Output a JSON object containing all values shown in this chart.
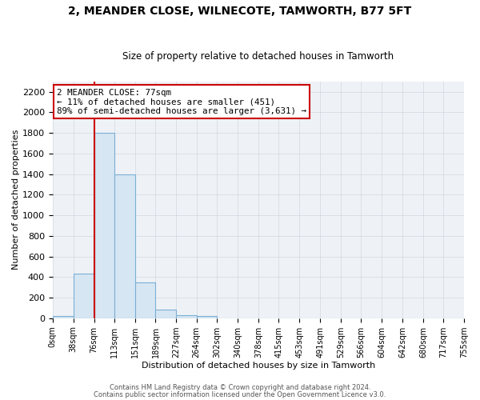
{
  "title": "2, MEANDER CLOSE, WILNECOTE, TAMWORTH, B77 5FT",
  "subtitle": "Size of property relative to detached houses in Tamworth",
  "xlabel": "Distribution of detached houses by size in Tamworth",
  "ylabel": "Number of detached properties",
  "bin_edges": [
    0,
    38,
    76,
    113,
    151,
    189,
    227,
    264,
    302,
    340,
    378,
    415,
    453,
    491,
    529,
    566,
    604,
    642,
    680,
    717,
    755
  ],
  "bin_counts": [
    20,
    430,
    1800,
    1400,
    350,
    80,
    30,
    20,
    0,
    0,
    0,
    0,
    0,
    0,
    0,
    0,
    0,
    0,
    0,
    0
  ],
  "bar_color": "#d6e6f3",
  "bar_edge_color": "#7bafd4",
  "grid_color": "#d0d8e0",
  "property_size": 77,
  "red_line_color": "#cc0000",
  "annotation_text_line1": "2 MEANDER CLOSE: 77sqm",
  "annotation_text_line2": "← 11% of detached houses are smaller (451)",
  "annotation_text_line3": "89% of semi-detached houses are larger (3,631) →",
  "annotation_box_facecolor": "#ffffff",
  "annotation_box_edgecolor": "#cc0000",
  "ylim": [
    0,
    2300
  ],
  "yticks": [
    0,
    200,
    400,
    600,
    800,
    1000,
    1200,
    1400,
    1600,
    1800,
    2000,
    2200
  ],
  "tick_labels": [
    "0sqm",
    "38sqm",
    "76sqm",
    "113sqm",
    "151sqm",
    "189sqm",
    "227sqm",
    "264sqm",
    "302sqm",
    "340sqm",
    "378sqm",
    "415sqm",
    "453sqm",
    "491sqm",
    "529sqm",
    "566sqm",
    "604sqm",
    "642sqm",
    "680sqm",
    "717sqm",
    "755sqm"
  ],
  "footer_line1": "Contains HM Land Registry data © Crown copyright and database right 2024.",
  "footer_line2": "Contains public sector information licensed under the Open Government Licence v3.0.",
  "background_color": "#ffffff",
  "axes_bg_color": "#eef2f7"
}
